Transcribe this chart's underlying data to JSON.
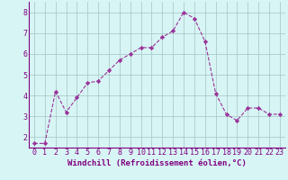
{
  "x": [
    0,
    1,
    2,
    3,
    4,
    5,
    6,
    7,
    8,
    9,
    10,
    11,
    12,
    13,
    14,
    15,
    16,
    17,
    18,
    19,
    20,
    21,
    22,
    23
  ],
  "y": [
    1.7,
    1.7,
    4.2,
    3.2,
    3.9,
    4.6,
    4.7,
    5.2,
    5.7,
    6.0,
    6.3,
    6.3,
    6.8,
    7.1,
    8.0,
    7.7,
    6.6,
    4.1,
    3.1,
    2.8,
    3.4,
    3.4,
    3.1,
    3.1
  ],
  "line_color": "#993399",
  "marker": "D",
  "marker_size": 2.2,
  "bg_color": "#d8f5f5",
  "grid_color": "#aacccc",
  "xlabel": "Windchill (Refroidissement éolien,°C)",
  "ylim": [
    1.5,
    8.5
  ],
  "xlim": [
    -0.5,
    23.5
  ],
  "xlabel_fontsize": 6.5,
  "tick_fontsize": 6.0,
  "label_color": "#800080"
}
